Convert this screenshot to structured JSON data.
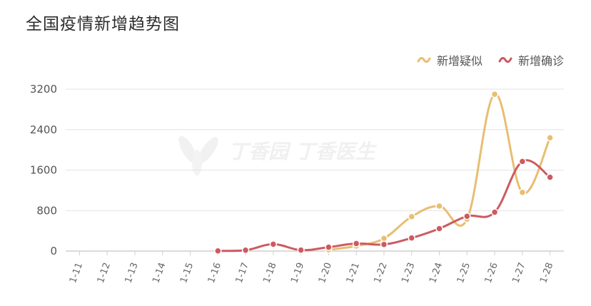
{
  "title": "全国疫情新增趋势图",
  "watermark": "丁香园 丁香医生",
  "colors": {
    "suspected": "#E8BE72",
    "confirmed": "#CC5B61",
    "grid": "#e3e3e3",
    "axis": "#cfcfcf"
  },
  "chart_data": {
    "type": "line",
    "title": "全国疫情新增趋势图",
    "xlabel": "",
    "ylabel": "",
    "ylim": [
      0,
      3200
    ],
    "yticks": [
      "0",
      "800",
      "1600",
      "2400",
      "3200"
    ],
    "categories": [
      "1-11",
      "1-12",
      "1-13",
      "1-14",
      "1-15",
      "1-16",
      "1-17",
      "1-18",
      "1-19",
      "1-20",
      "1-21",
      "1-22",
      "1-23",
      "1-24",
      "1-25",
      "1-26",
      "1-27",
      "1-28"
    ],
    "grid": true,
    "legend": "top-right",
    "series": [
      {
        "name": "新增疑似",
        "color": "#E8BE72",
        "values": [
          null,
          null,
          null,
          null,
          null,
          null,
          null,
          null,
          null,
          27,
          100,
          250,
          680,
          890,
          630,
          3100,
          1160,
          2240
        ]
      },
      {
        "name": "新增确诊",
        "color": "#CC5B61",
        "values": [
          null,
          null,
          null,
          null,
          null,
          4,
          17,
          136,
          19,
          77,
          149,
          131,
          259,
          444,
          688,
          769,
          1771,
          1459
        ]
      }
    ]
  }
}
